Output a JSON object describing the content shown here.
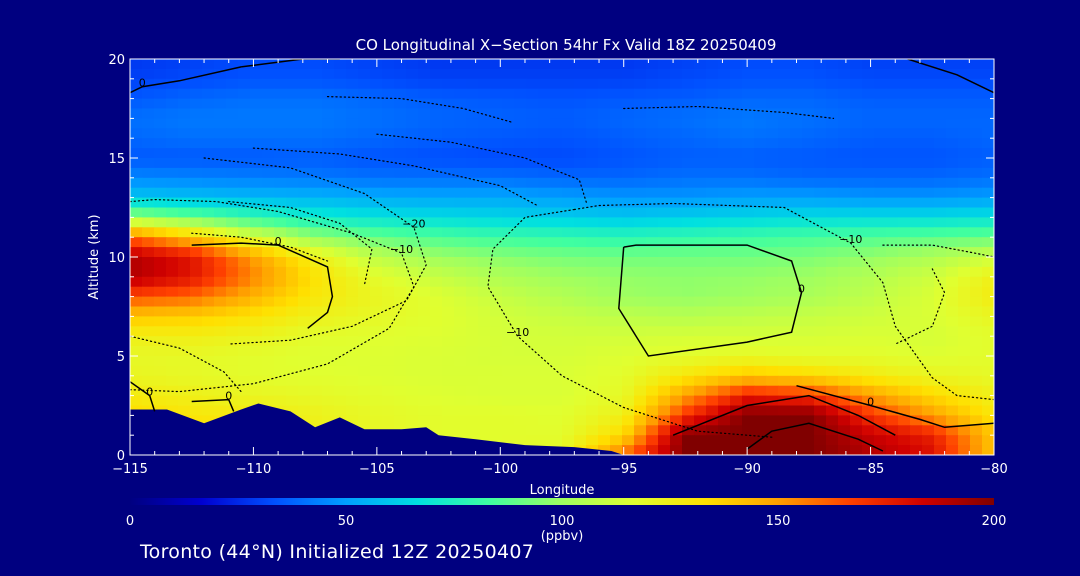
{
  "chart_data": {
    "type": "heatmap",
    "title": "CO Longitudinal X−Section 54hr  Fx Valid 18Z 20250409",
    "xlabel": "Longitude",
    "ylabel": "Altitude (km)",
    "xlim": [
      -115,
      -80
    ],
    "ylim": [
      0,
      20
    ],
    "x_ticks": [
      -115,
      -110,
      -105,
      -100,
      -95,
      -90,
      -85,
      -80
    ],
    "x_tick_labels": [
      "−115",
      "−110",
      "−105",
      "−100",
      "−95",
      "−90",
      "−85",
      "−80"
    ],
    "y_ticks": [
      0,
      5,
      10,
      15,
      20
    ],
    "y_tick_labels": [
      "0",
      "5",
      "10",
      "15",
      "20"
    ],
    "colorbar": {
      "min": 0,
      "max": 200,
      "ticks": [
        0,
        50,
        100,
        150,
        200
      ],
      "tick_labels": [
        "0",
        "50",
        "100",
        "150",
        "200"
      ],
      "unit": "(ppbv)",
      "colors": [
        "#000080",
        "#0000d0",
        "#0050ff",
        "#00a0ff",
        "#00e0e0",
        "#40ffa0",
        "#a0ff60",
        "#e0ff30",
        "#ffe000",
        "#ffa000",
        "#ff4000",
        "#d00000",
        "#800000"
      ]
    },
    "co_field": {
      "x": [
        -115,
        -112.5,
        -110,
        -107.5,
        -105,
        -102.5,
        -100,
        -97.5,
        -95,
        -92.5,
        -90,
        -87.5,
        -85,
        -82.5,
        -80
      ],
      "y": [
        0,
        1,
        2,
        3,
        4,
        5,
        6,
        7,
        8,
        9,
        10,
        11,
        12,
        13,
        14,
        15,
        16,
        17,
        18,
        19,
        20
      ],
      "values": [
        [
          140,
          135,
          130,
          125,
          120,
          118,
          118,
          120,
          160,
          200,
          200,
          200,
          190,
          180,
          140
        ],
        [
          140,
          135,
          130,
          125,
          120,
          118,
          118,
          118,
          135,
          200,
          200,
          200,
          185,
          175,
          140
        ],
        [
          135,
          130,
          128,
          124,
          120,
          118,
          118,
          117,
          125,
          170,
          200,
          200,
          170,
          150,
          130
        ],
        [
          128,
          125,
          122,
          120,
          118,
          116,
          115,
          115,
          120,
          150,
          175,
          170,
          150,
          135,
          125
        ],
        [
          122,
          120,
          118,
          117,
          116,
          115,
          115,
          115,
          118,
          130,
          140,
          135,
          128,
          122,
          120
        ],
        [
          120,
          120,
          118,
          116,
          116,
          115,
          114,
          114,
          116,
          118,
          120,
          118,
          118,
          116,
          118
        ],
        [
          125,
          126,
          123,
          118,
          117,
          116,
          114,
          113,
          113,
          114,
          114,
          114,
          115,
          114,
          118
        ],
        [
          140,
          138,
          132,
          124,
          120,
          117,
          113,
          110,
          108,
          106,
          108,
          110,
          112,
          115,
          122
        ],
        [
          165,
          160,
          145,
          130,
          122,
          116,
          110,
          105,
          100,
          98,
          100,
          103,
          108,
          115,
          128
        ],
        [
          190,
          178,
          155,
          132,
          118,
          110,
          104,
          100,
          98,
          97,
          98,
          100,
          105,
          112,
          125
        ],
        [
          190,
          178,
          150,
          125,
          108,
          100,
          96,
          93,
          92,
          92,
          92,
          94,
          98,
          104,
          112
        ],
        [
          160,
          140,
          115,
          98,
          90,
          85,
          82,
          80,
          78,
          80,
          82,
          84,
          86,
          88,
          90
        ],
        [
          100,
          90,
          80,
          72,
          68,
          66,
          64,
          62,
          60,
          62,
          64,
          66,
          66,
          66,
          68
        ],
        [
          60,
          58,
          56,
          55,
          53,
          52,
          52,
          50,
          48,
          48,
          50,
          50,
          48,
          48,
          50
        ],
        [
          45,
          44,
          43,
          42,
          40,
          40,
          40,
          38,
          38,
          40,
          40,
          38,
          38,
          38,
          40
        ],
        [
          35,
          35,
          35,
          36,
          34,
          33,
          32,
          32,
          34,
          36,
          36,
          35,
          34,
          34,
          36
        ],
        [
          38,
          40,
          40,
          40,
          38,
          36,
          35,
          34,
          36,
          38,
          40,
          38,
          36,
          36,
          38
        ],
        [
          40,
          42,
          42,
          42,
          40,
          38,
          37,
          36,
          38,
          40,
          42,
          40,
          38,
          38,
          38
        ],
        [
          35,
          38,
          40,
          40,
          38,
          36,
          35,
          34,
          35,
          36,
          38,
          38,
          36,
          36,
          36
        ],
        [
          30,
          32,
          34,
          34,
          32,
          30,
          30,
          30,
          30,
          32,
          34,
          34,
          32,
          32,
          32
        ],
        [
          28,
          30,
          32,
          32,
          30,
          28,
          28,
          28,
          28,
          30,
          32,
          32,
          30,
          30,
          30
        ]
      ]
    },
    "terrain": {
      "x": [
        -115,
        -113.5,
        -112,
        -110.5,
        -109.8,
        -108.5,
        -107.5,
        -106.5,
        -105.5,
        -104,
        -103,
        -102.5,
        -101,
        -99,
        -97,
        -95.5,
        -95,
        -80
      ],
      "y": [
        2.3,
        2.3,
        1.6,
        2.3,
        2.6,
        2.2,
        1.4,
        1.9,
        1.3,
        1.3,
        1.4,
        1.0,
        0.8,
        0.5,
        0.4,
        0.2,
        0.0,
        0.0
      ]
    },
    "contours": [
      {
        "label": "0",
        "style": "solid",
        "points": [
          [
            -112.5,
            10.6
          ],
          [
            -110.5,
            10.7
          ],
          [
            -109,
            10.6
          ],
          [
            -107,
            9.5
          ],
          [
            -106.8,
            8.0
          ],
          [
            -107,
            7.2
          ],
          [
            -107.8,
            6.4
          ]
        ]
      },
      {
        "label": "0",
        "style": "solid",
        "points": [
          [
            -95,
            10.5
          ],
          [
            -94.5,
            10.6
          ],
          [
            -90,
            10.6
          ],
          [
            -88.2,
            9.8
          ],
          [
            -87.8,
            8.2
          ],
          [
            -88.2,
            6.2
          ],
          [
            -90,
            5.7
          ],
          [
            -94,
            5.0
          ],
          [
            -95.2,
            7.4
          ],
          [
            -95,
            10.5
          ]
        ]
      },
      {
        "label": "0",
        "style": "solid",
        "points": [
          [
            -115,
            3.7
          ],
          [
            -114.2,
            3.0
          ],
          [
            -114,
            2.2
          ]
        ]
      },
      {
        "label": "0",
        "style": "solid",
        "points": [
          [
            -112.5,
            2.7
          ],
          [
            -111,
            2.8
          ],
          [
            -110.8,
            2.2
          ]
        ]
      },
      {
        "label": "0",
        "style": "solid",
        "points": [
          [
            -88,
            3.5
          ],
          [
            -85,
            2.5
          ],
          [
            -83,
            1.8
          ],
          [
            -82,
            1.4
          ],
          [
            -80,
            1.6
          ]
        ]
      },
      {
        "label": "",
        "style": "solid",
        "points": [
          [
            -93,
            1.0
          ],
          [
            -90,
            2.5
          ],
          [
            -87.5,
            3.0
          ],
          [
            -85.5,
            2.0
          ],
          [
            -84,
            1.0
          ]
        ]
      },
      {
        "label": "",
        "style": "solid",
        "points": [
          [
            -90,
            0.3
          ],
          [
            -89,
            1.2
          ],
          [
            -87.5,
            1.6
          ],
          [
            -85.5,
            0.8
          ],
          [
            -84.5,
            0.2
          ]
        ]
      },
      {
        "label": "",
        "style": "solid",
        "points": [
          [
            -110.5,
            19.6
          ],
          [
            -108,
            20
          ],
          [
            -106.5,
            20
          ]
        ]
      },
      {
        "label": "",
        "style": "solid",
        "points": [
          [
            -83.5,
            20
          ],
          [
            -81.5,
            19.2
          ],
          [
            -80,
            18.3
          ]
        ]
      },
      {
        "label": "0",
        "style": "solid",
        "points": [
          [
            -115,
            18.3
          ],
          [
            -114.5,
            18.6
          ],
          [
            -113,
            18.9
          ],
          [
            -110.5,
            19.6
          ]
        ]
      },
      {
        "label": "−10",
        "style": "dotted",
        "points": [
          [
            -115,
            12.8
          ],
          [
            -114,
            12.9
          ],
          [
            -111.5,
            12.8
          ],
          [
            -109,
            12.3
          ],
          [
            -106,
            11.2
          ],
          [
            -104,
            10.2
          ],
          [
            -103.5,
            8.5
          ],
          [
            -104.5,
            6.4
          ],
          [
            -107,
            4.6
          ],
          [
            -110,
            3.6
          ],
          [
            -113,
            3.2
          ],
          [
            -115,
            3.3
          ]
        ]
      },
      {
        "label": "−10",
        "style": "dotted",
        "points": [
          [
            -97,
            12.4
          ],
          [
            -96,
            12.6
          ],
          [
            -93,
            12.7
          ],
          [
            -88.5,
            12.5
          ],
          [
            -85.8,
            10.7
          ],
          [
            -84.5,
            8.7
          ],
          [
            -84,
            6.5
          ],
          [
            -82.5,
            3.9
          ],
          [
            -81.5,
            3.0
          ],
          [
            -80,
            2.8
          ]
        ]
      },
      {
        "label": "−10",
        "style": "dotted",
        "points": [
          [
            -97,
            12.4
          ],
          [
            -99,
            12.0
          ],
          [
            -100.3,
            10.4
          ],
          [
            -100.5,
            8.5
          ],
          [
            -99.3,
            6.0
          ],
          [
            -97.5,
            4.0
          ],
          [
            -95,
            2.4
          ],
          [
            -92,
            1.2
          ],
          [
            -90,
            1.0
          ],
          [
            -89,
            0.9
          ]
        ]
      },
      {
        "label": "−20",
        "style": "dotted",
        "points": [
          [
            -112,
            15.0
          ],
          [
            -108.5,
            14.5
          ],
          [
            -105.5,
            13.2
          ],
          [
            -103.5,
            11.5
          ],
          [
            -103,
            9.6
          ],
          [
            -103.8,
            7.8
          ],
          [
            -106,
            6.5
          ],
          [
            -108.5,
            5.8
          ],
          [
            -111,
            5.6
          ]
        ]
      },
      {
        "label": "",
        "style": "dotted",
        "points": [
          [
            -111,
            12.8
          ],
          [
            -108.5,
            12.5
          ],
          [
            -106.5,
            11.7
          ],
          [
            -105.2,
            10.4
          ],
          [
            -105.5,
            8.6
          ]
        ]
      },
      {
        "label": "",
        "style": "dotted",
        "points": [
          [
            -112.5,
            11.2
          ],
          [
            -110.5,
            11.0
          ],
          [
            -108.5,
            10.5
          ],
          [
            -107,
            9.8
          ]
        ]
      },
      {
        "label": "",
        "style": "dotted",
        "points": [
          [
            -110,
            15.5
          ],
          [
            -106.5,
            15.2
          ],
          [
            -103.5,
            14.6
          ],
          [
            -100,
            13.6
          ],
          [
            -98.5,
            12.6
          ]
        ]
      },
      {
        "label": "",
        "style": "dotted",
        "points": [
          [
            -105,
            16.2
          ],
          [
            -102,
            15.8
          ],
          [
            -99,
            15.0
          ],
          [
            -96.8,
            13.9
          ],
          [
            -96.5,
            12.7
          ]
        ]
      },
      {
        "label": "",
        "style": "dotted",
        "points": [
          [
            -107,
            18.1
          ],
          [
            -104,
            18.0
          ],
          [
            -101.5,
            17.5
          ],
          [
            -99.5,
            16.8
          ]
        ]
      },
      {
        "label": "",
        "style": "dotted",
        "points": [
          [
            -95,
            17.5
          ],
          [
            -92,
            17.6
          ],
          [
            -88.5,
            17.3
          ],
          [
            -86.5,
            17.0
          ]
        ]
      },
      {
        "label": "",
        "style": "dotted",
        "points": [
          [
            -84.5,
            10.6
          ],
          [
            -82.5,
            10.6
          ],
          [
            -80.8,
            10.2
          ],
          [
            -80,
            10.0
          ]
        ]
      },
      {
        "label": "",
        "style": "dotted",
        "points": [
          [
            -82.5,
            9.4
          ],
          [
            -82,
            8.2
          ],
          [
            -82.5,
            6.5
          ],
          [
            -84,
            5.6
          ]
        ]
      },
      {
        "label": "",
        "style": "dotted",
        "points": [
          [
            -115,
            6.0
          ],
          [
            -113,
            5.4
          ],
          [
            -111.2,
            4.2
          ],
          [
            -110.5,
            3.2
          ]
        ]
      }
    ]
  },
  "footer": {
    "text": "Toronto (44°N) Initialized 12Z 20250407"
  }
}
